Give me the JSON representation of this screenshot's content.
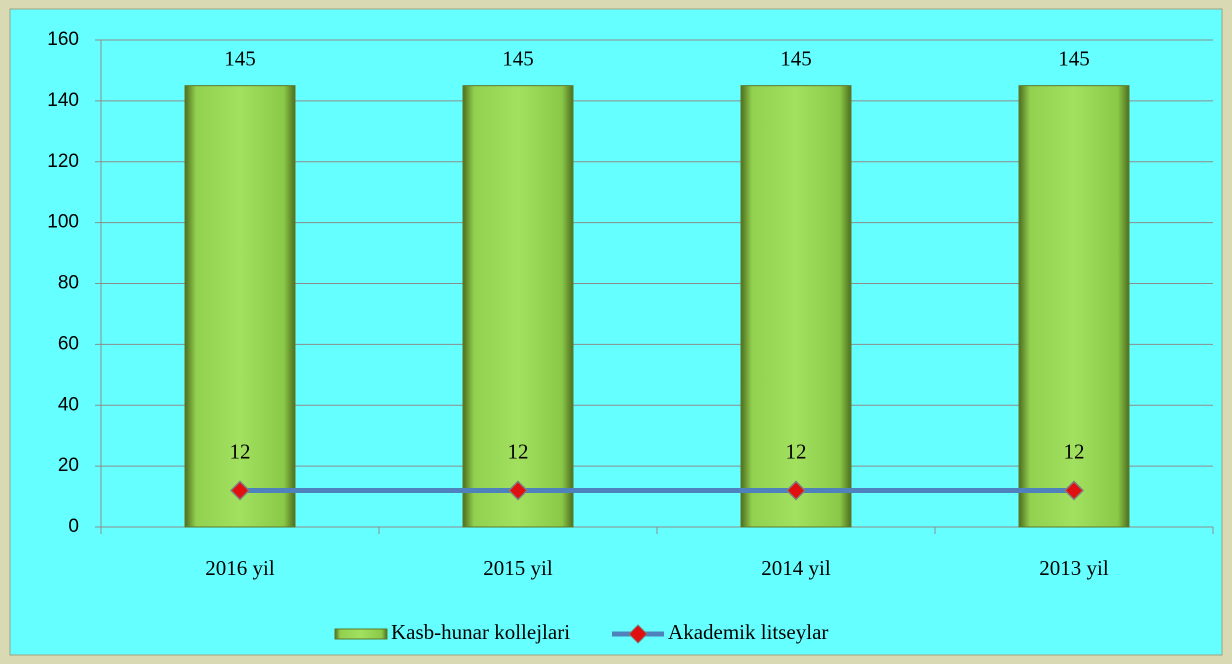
{
  "chart_data": {
    "type": "bar",
    "categories": [
      "2016 yil",
      "2015 yil",
      "2014 yil",
      "2013 yil"
    ],
    "series": [
      {
        "name": "Kasb-hunar kollejlari",
        "type": "bar",
        "color": "#92d050",
        "values": [
          145,
          145,
          145,
          145
        ]
      },
      {
        "name": "Akademik litseylar",
        "type": "line",
        "color": "#4f81bd",
        "marker_color": "#e01010",
        "values": [
          12,
          12,
          12,
          12
        ]
      }
    ],
    "ylim": [
      0,
      160
    ],
    "yticks": [
      0,
      20,
      40,
      60,
      80,
      100,
      120,
      140,
      160
    ],
    "grid": true,
    "legend": "bottom"
  }
}
